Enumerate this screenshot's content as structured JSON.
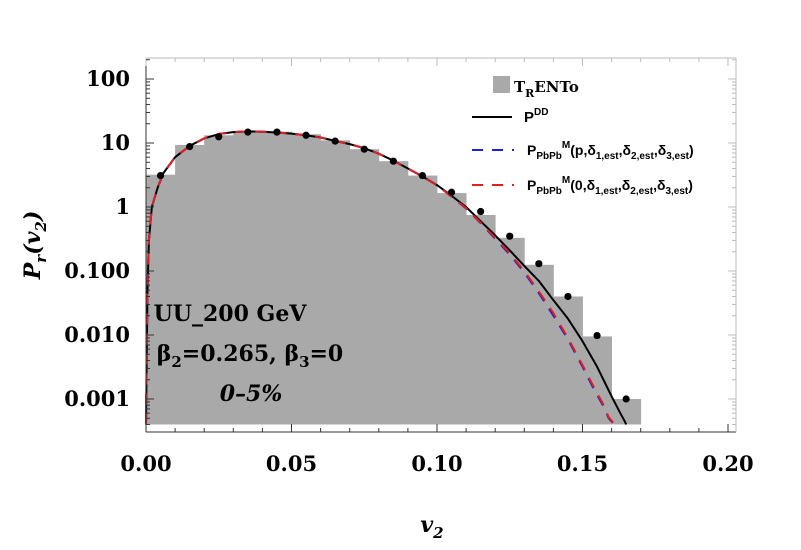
{
  "chart_data": {
    "type": "line",
    "xlabel": "v2",
    "ylabel": "Pr(v2)",
    "xlim": [
      0.0,
      0.2
    ],
    "ylim": [
      0.0004,
      200
    ],
    "yscale": "log",
    "xticks": [
      "0.00",
      "0.05",
      "0.10",
      "0.15",
      "0.20"
    ],
    "xtick_values": [
      0.0,
      0.05,
      0.1,
      0.15,
      0.2
    ],
    "yticks": [
      "0.001",
      "0.010",
      "0.100",
      "1",
      "10",
      "100"
    ],
    "ytick_values": [
      0.001,
      0.01,
      0.1,
      1,
      10,
      100
    ],
    "annotations": [
      "UU_200 GeV",
      "β2=0.265, β3=0",
      "0–5%"
    ],
    "legend_position": "top-right",
    "colors": {
      "histogram": "#a9a9a9",
      "pdd": "#000000",
      "fit_p": "#1f1fd8",
      "fit_0": "#e0201e",
      "points": "#000000"
    },
    "series": [
      {
        "name": "TRENTo",
        "kind": "histogram",
        "bin_edges": [
          0.0,
          0.01,
          0.02,
          0.03,
          0.04,
          0.05,
          0.06,
          0.07,
          0.08,
          0.09,
          0.1,
          0.11,
          0.12,
          0.13,
          0.14,
          0.15,
          0.16,
          0.17
        ],
        "values": [
          3.2,
          9.3,
          13.2,
          14.8,
          15.0,
          13.7,
          11.0,
          8.0,
          5.2,
          3.1,
          1.65,
          0.75,
          0.33,
          0.125,
          0.04,
          0.0095,
          0.001
        ]
      },
      {
        "name": "PDD",
        "kind": "line",
        "style": "solid",
        "x": [
          0.0,
          0.0005,
          0.001,
          0.002,
          0.004,
          0.006,
          0.01,
          0.015,
          0.02,
          0.025,
          0.03,
          0.035,
          0.04,
          0.045,
          0.05,
          0.055,
          0.06,
          0.065,
          0.07,
          0.075,
          0.08,
          0.085,
          0.09,
          0.095,
          0.1,
          0.105,
          0.11,
          0.115,
          0.12,
          0.125,
          0.13,
          0.135,
          0.14,
          0.145,
          0.15,
          0.155,
          0.16,
          0.163,
          0.1645,
          0.165
        ],
        "y": [
          0.0004,
          0.05,
          0.3,
          1.0,
          2.0,
          3.4,
          6.0,
          9.0,
          11.8,
          13.8,
          14.8,
          15.2,
          15.0,
          14.6,
          14.0,
          13.2,
          12.2,
          10.8,
          9.6,
          8.3,
          6.8,
          5.3,
          4.0,
          3.0,
          2.2,
          1.5,
          1.0,
          0.6,
          0.36,
          0.21,
          0.12,
          0.07,
          0.035,
          0.018,
          0.008,
          0.0032,
          0.0011,
          0.0006,
          0.00045,
          0.0004
        ]
      },
      {
        "name": "PPbPbM(p,δ1,est,δ2,est,δ3,est)",
        "kind": "line",
        "style": "dashed",
        "x": [
          0.0,
          0.0005,
          0.001,
          0.002,
          0.004,
          0.006,
          0.01,
          0.015,
          0.02,
          0.025,
          0.03,
          0.035,
          0.04,
          0.045,
          0.05,
          0.055,
          0.06,
          0.065,
          0.07,
          0.075,
          0.08,
          0.085,
          0.09,
          0.095,
          0.1,
          0.105,
          0.11,
          0.115,
          0.12,
          0.125,
          0.13,
          0.135,
          0.14,
          0.145,
          0.15,
          0.154,
          0.157,
          0.159,
          0.1605,
          0.161
        ],
        "y": [
          0.0004,
          0.05,
          0.3,
          1.0,
          2.0,
          3.4,
          6.0,
          9.0,
          11.8,
          13.8,
          14.8,
          15.2,
          15.0,
          14.6,
          14.0,
          13.2,
          12.2,
          10.8,
          9.6,
          8.3,
          6.8,
          5.3,
          4.0,
          3.0,
          2.2,
          1.45,
          0.95,
          0.56,
          0.32,
          0.18,
          0.095,
          0.045,
          0.02,
          0.0085,
          0.0032,
          0.0014,
          0.0008,
          0.0005,
          0.00042,
          0.0004
        ]
      },
      {
        "name": "PPbPbM(0,δ1,est,δ2,est,δ3,est)",
        "kind": "line",
        "style": "dashed",
        "x": [
          0.0,
          0.0005,
          0.001,
          0.002,
          0.004,
          0.006,
          0.01,
          0.015,
          0.02,
          0.025,
          0.03,
          0.035,
          0.04,
          0.045,
          0.05,
          0.055,
          0.06,
          0.065,
          0.07,
          0.075,
          0.08,
          0.085,
          0.09,
          0.095,
          0.1,
          0.105,
          0.11,
          0.115,
          0.12,
          0.125,
          0.13,
          0.135,
          0.14,
          0.145,
          0.15,
          0.154,
          0.157,
          0.159,
          0.1605,
          0.161
        ],
        "y": [
          0.0004,
          0.05,
          0.3,
          1.0,
          2.0,
          3.4,
          6.0,
          9.0,
          11.8,
          13.8,
          14.8,
          15.2,
          15.0,
          14.6,
          14.0,
          13.2,
          12.2,
          10.8,
          9.6,
          8.3,
          6.8,
          5.3,
          4.0,
          3.0,
          2.2,
          1.45,
          0.96,
          0.57,
          0.33,
          0.19,
          0.1,
          0.048,
          0.022,
          0.009,
          0.0034,
          0.0015,
          0.00085,
          0.00052,
          0.00043,
          0.0004
        ]
      },
      {
        "name": "points",
        "kind": "scatter",
        "x": [
          0.005,
          0.015,
          0.025,
          0.035,
          0.045,
          0.055,
          0.065,
          0.075,
          0.085,
          0.095,
          0.105,
          0.115,
          0.125,
          0.135,
          0.145,
          0.155,
          0.165
        ],
        "y": [
          3.1,
          8.8,
          12.5,
          14.8,
          14.8,
          13.2,
          10.7,
          8.0,
          5.2,
          3.1,
          1.7,
          0.85,
          0.35,
          0.13,
          0.04,
          0.0098,
          0.001
        ]
      }
    ]
  }
}
